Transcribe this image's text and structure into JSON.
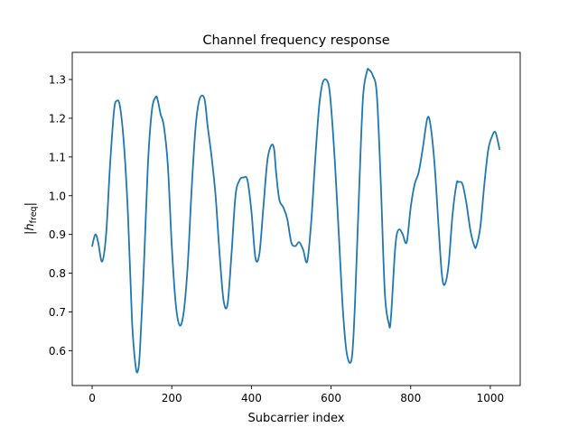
{
  "chart_data": {
    "type": "line",
    "title": "Channel frequency response",
    "xlabel": "Subcarrier index",
    "ylabel": "|h_freq|",
    "xlim": [
      -50,
      1075
    ],
    "ylim": [
      0.51,
      1.37
    ],
    "xticks": [
      0,
      200,
      400,
      600,
      800,
      1000
    ],
    "yticks": [
      0.6,
      0.7,
      0.8,
      0.9,
      1.0,
      1.1,
      1.2,
      1.3
    ],
    "grid": false,
    "series": [
      {
        "color": "#1f77b4",
        "x": [
          0,
          8,
          15,
          25,
          35,
          45,
          55,
          62,
          70,
          80,
          90,
          100,
          108,
          114,
          120,
          130,
          140,
          150,
          160,
          165,
          172,
          180,
          190,
          200,
          210,
          220,
          230,
          240,
          250,
          260,
          270,
          282,
          290,
          300,
          310,
          320,
          330,
          340,
          350,
          360,
          370,
          380,
          390,
          400,
          410,
          420,
          430,
          440,
          450,
          457,
          462,
          470,
          480,
          490,
          500,
          510,
          520,
          530,
          540,
          550,
          560,
          570,
          580,
          593,
          600,
          610,
          620,
          630,
          640,
          652,
          660,
          670,
          680,
          690,
          695,
          705,
          715,
          725,
          735,
          745,
          750,
          760,
          765,
          772,
          780,
          790,
          800,
          810,
          820,
          830,
          842,
          850,
          860,
          870,
          878,
          885,
          895,
          905,
          915,
          920,
          930,
          940,
          950,
          960,
          965,
          975,
          985,
          995,
          1005,
          1012,
          1018,
          1023
        ],
        "y": [
          0.87,
          0.9,
          0.88,
          0.83,
          0.9,
          1.08,
          1.22,
          1.245,
          1.23,
          1.13,
          0.95,
          0.68,
          0.57,
          0.545,
          0.6,
          0.82,
          1.08,
          1.22,
          1.255,
          1.245,
          1.21,
          1.18,
          1.08,
          0.87,
          0.72,
          0.665,
          0.7,
          0.82,
          1.02,
          1.18,
          1.25,
          1.25,
          1.18,
          1.1,
          1.0,
          0.85,
          0.73,
          0.72,
          0.85,
          1.0,
          1.04,
          1.047,
          1.04,
          0.96,
          0.84,
          0.85,
          0.97,
          1.09,
          1.13,
          1.12,
          1.06,
          0.99,
          0.97,
          0.94,
          0.88,
          0.87,
          0.88,
          0.86,
          0.83,
          0.93,
          1.09,
          1.23,
          1.295,
          1.29,
          1.23,
          1.08,
          0.89,
          0.7,
          0.59,
          0.58,
          0.72,
          1.0,
          1.25,
          1.32,
          1.325,
          1.31,
          1.26,
          1.03,
          0.75,
          0.67,
          0.68,
          0.85,
          0.9,
          0.913,
          0.9,
          0.88,
          0.97,
          1.03,
          1.06,
          1.12,
          1.2,
          1.18,
          1.08,
          0.92,
          0.8,
          0.77,
          0.82,
          0.95,
          1.03,
          1.035,
          1.03,
          0.98,
          0.91,
          0.87,
          0.87,
          0.92,
          1.03,
          1.12,
          1.155,
          1.165,
          1.145,
          1.12
        ]
      }
    ]
  }
}
